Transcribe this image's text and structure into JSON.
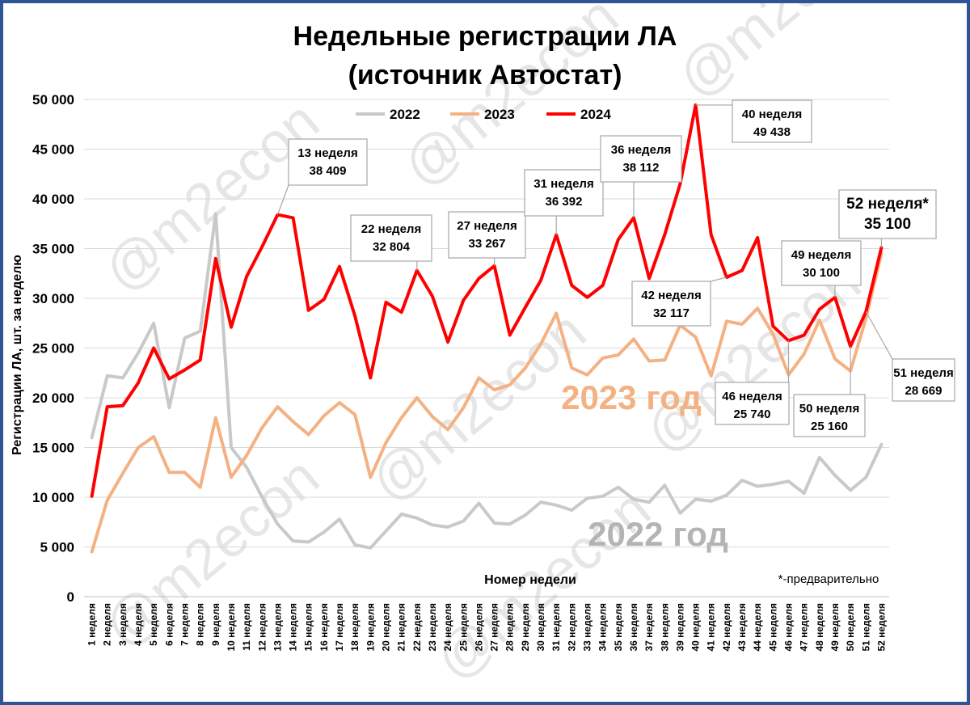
{
  "title_line1": "Недельные регистрации ЛА",
  "title_line2": "(источник Автостат)",
  "watermark": "@m2econ",
  "note": "*-предварительно",
  "chart_data": {
    "type": "line",
    "title": "Недельные регистрации ЛА (источник Автостат)",
    "xlabel": "Номер недели",
    "ylabel": "Регистрации ЛА, шт. за неделю",
    "ylim": [
      0,
      50000
    ],
    "yticks": [
      0,
      5000,
      10000,
      15000,
      20000,
      25000,
      30000,
      35000,
      40000,
      45000,
      50000
    ],
    "ytick_labels": [
      "0",
      "5 000",
      "10 000",
      "15 000",
      "20 000",
      "25 000",
      "30 000",
      "35 000",
      "40 000",
      "45 000",
      "50 000"
    ],
    "grid": true,
    "legend_position": "top",
    "categories": [
      "1 неделя",
      "2 неделя",
      "3 неделя",
      "4 неделя",
      "5 неделя",
      "6 неделя",
      "7 неделя",
      "8 неделя",
      "9 неделя",
      "10 неделя",
      "11 неделя",
      "12 неделя",
      "13 неделя",
      "14 неделя",
      "15 неделя",
      "16 неделя",
      "17 неделя",
      "18 неделя",
      "19 неделя",
      "20 неделя",
      "21 неделя",
      "22 неделя",
      "23 неделя",
      "24 неделя",
      "25 неделя",
      "26 неделя",
      "27 неделя",
      "28 неделя",
      "29 неделя",
      "30 неделя",
      "31 неделя",
      "32 неделя",
      "33 неделя",
      "34 неделя",
      "35 неделя",
      "36 неделя",
      "37 неделя",
      "38 неделя",
      "39 неделя",
      "40 неделя",
      "41 неделя",
      "42 неделя",
      "43 неделя",
      "44 неделя",
      "45 неделя",
      "46 неделя",
      "47 неделя",
      "48 неделя",
      "49 неделя",
      "50 неделя",
      "51 неделя",
      "52 неделя"
    ],
    "series": [
      {
        "name": "2022",
        "color": "#c9c9c9",
        "values": [
          16000,
          22200,
          22000,
          24500,
          27500,
          19000,
          26000,
          26700,
          38500,
          15000,
          13000,
          10000,
          7300,
          5600,
          5500,
          6500,
          7800,
          5200,
          4900,
          6600,
          8300,
          7900,
          7200,
          7000,
          7600,
          9400,
          7400,
          7300,
          8200,
          9500,
          9200,
          8700,
          9900,
          10100,
          11000,
          9800,
          9500,
          11200,
          8400,
          9800,
          9600,
          10200,
          11700,
          11100,
          11300,
          11600,
          10400,
          14000,
          12200,
          10700,
          12000,
          15300
        ]
      },
      {
        "name": "2023",
        "color": "#f4b183",
        "values": [
          4500,
          9700,
          12400,
          15000,
          16100,
          12500,
          12500,
          11000,
          18000,
          12000,
          14200,
          17000,
          19100,
          17600,
          16300,
          18200,
          19500,
          18300,
          12000,
          15500,
          18000,
          20000,
          18100,
          16800,
          19000,
          22000,
          20800,
          21300,
          23000,
          25400,
          28500,
          23000,
          22300,
          24000,
          24300,
          25900,
          23700,
          23800,
          27300,
          26100,
          22200,
          27700,
          27400,
          29000,
          26400,
          22300,
          24400,
          27800,
          23900,
          22700,
          28000,
          34500
        ]
      },
      {
        "name": "2024",
        "color": "#ff0000",
        "values": [
          10100,
          19100,
          19200,
          21500,
          25000,
          21900,
          22800,
          23800,
          34000,
          27100,
          32200,
          35200,
          38409,
          38100,
          28800,
          29900,
          33200,
          28200,
          22000,
          29600,
          28600,
          32804,
          30200,
          25600,
          29800,
          32000,
          33267,
          26300,
          29100,
          31800,
          36392,
          31300,
          30100,
          31300,
          35900,
          38112,
          32000,
          36400,
          41500,
          49438,
          36400,
          32117,
          32800,
          36100,
          27200,
          25740,
          26300,
          28900,
          30100,
          25160,
          28669,
          35100
        ]
      }
    ],
    "annotations": [
      {
        "series": "2024",
        "week": 13,
        "line1": "13 неделя",
        "line2": "38 409"
      },
      {
        "series": "2024",
        "week": 22,
        "line1": "22 неделя",
        "line2": "32 804"
      },
      {
        "series": "2024",
        "week": 27,
        "line1": "27 неделя",
        "line2": "33 267"
      },
      {
        "series": "2024",
        "week": 31,
        "line1": "31 неделя",
        "line2": "36 392"
      },
      {
        "series": "2024",
        "week": 36,
        "line1": "36 неделя",
        "line2": "38 112"
      },
      {
        "series": "2024",
        "week": 40,
        "line1": "40 неделя",
        "line2": "49 438"
      },
      {
        "series": "2024",
        "week": 42,
        "line1": "42 неделя",
        "line2": "32 117"
      },
      {
        "series": "2024",
        "week": 46,
        "line1": "46 неделя",
        "line2": "25 740"
      },
      {
        "series": "2024",
        "week": 49,
        "line1": "49 неделя",
        "line2": "30 100"
      },
      {
        "series": "2024",
        "week": 50,
        "line1": "50 неделя",
        "line2": "25 160"
      },
      {
        "series": "2024",
        "week": 51,
        "line1": "51 неделя",
        "line2": "28 669"
      },
      {
        "series": "2024",
        "week": 52,
        "line1": "52 неделя*",
        "line2": "35 100"
      }
    ],
    "series_labels": [
      {
        "text": "2023 год",
        "color": "#f4b183"
      },
      {
        "text": "2022 год",
        "color": "#b4b4b4"
      }
    ]
  }
}
